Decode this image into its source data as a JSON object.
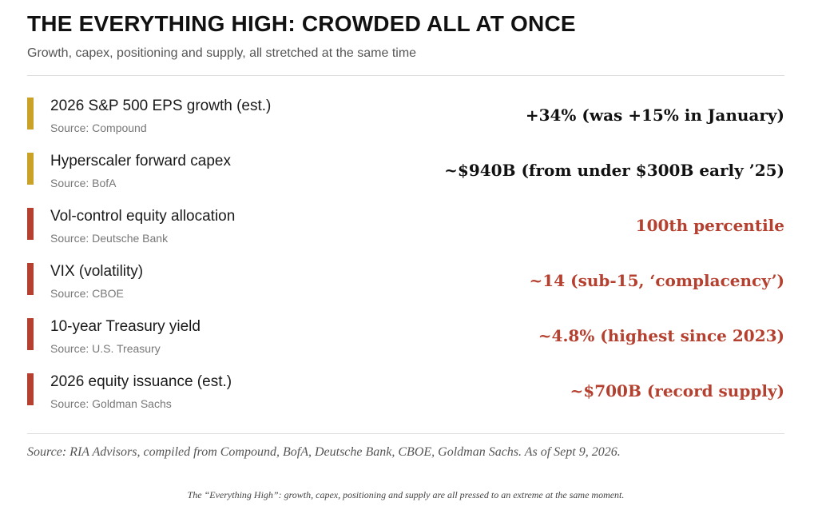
{
  "header": {
    "title": "THE EVERYTHING HIGH: CROWDED ALL AT ONCE",
    "subtitle": "Growth, capex, positioning and supply, all stretched at the same time"
  },
  "colors": {
    "gold": "#c9a227",
    "red": "#b5402f",
    "dark": "#111111"
  },
  "rows": [
    {
      "label": "2026 S&P 500 EPS growth (est.)",
      "source": "Source: Compound",
      "value": "+34% (was +15% in January)",
      "bar_color": "#c9a227",
      "value_color": "#111111"
    },
    {
      "label": "Hyperscaler forward capex",
      "source": "Source: BofA",
      "value": "~$940B (from under $300B early ’25)",
      "bar_color": "#c9a227",
      "value_color": "#111111"
    },
    {
      "label": "Vol-control equity allocation",
      "source": "Source: Deutsche Bank",
      "value": "100th percentile",
      "bar_color": "#b5402f",
      "value_color": "#b5402f"
    },
    {
      "label": "VIX (volatility)",
      "source": "Source: CBOE",
      "value": "~14 (sub-15, ‘complacency’)",
      "bar_color": "#b5402f",
      "value_color": "#b5402f"
    },
    {
      "label": "10-year Treasury yield",
      "source": "Source: U.S. Treasury",
      "value": "~4.8% (highest since 2023)",
      "bar_color": "#b5402f",
      "value_color": "#b5402f"
    },
    {
      "label": "2026 equity issuance (est.)",
      "source": "Source: Goldman Sachs",
      "value": "~$700B (record supply)",
      "bar_color": "#b5402f",
      "value_color": "#b5402f"
    }
  ],
  "footer": {
    "source": "Source: RIA Advisors, compiled from Compound, BofA, Deutsche Bank, CBOE, Goldman Sachs. As of Sept 9, 2026.",
    "caption": "The “Everything High”: growth, capex, positioning and supply are all pressed to an extreme at the same moment."
  }
}
